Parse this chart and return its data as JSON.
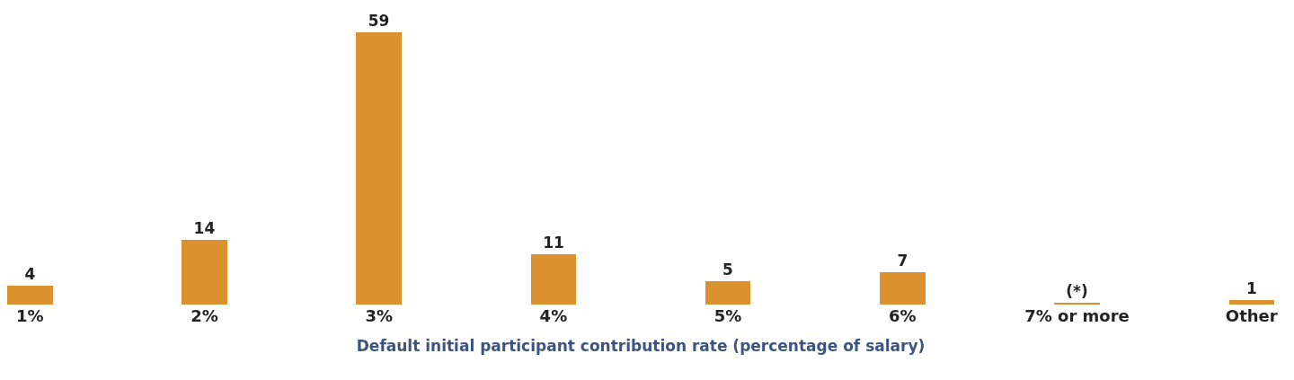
{
  "chart_data": {
    "type": "bar",
    "xlabel": "Default initial participant contribution rate (percentage of salary)",
    "categories": [
      "1%",
      "2%",
      "3%",
      "4%",
      "5%",
      "6%",
      "7% or more",
      "Other"
    ],
    "values": [
      4,
      14,
      59,
      11,
      5,
      7,
      0.2,
      1
    ],
    "value_labels": [
      "4",
      "14",
      "59",
      "11",
      "5",
      "7",
      "(*)",
      "1"
    ],
    "color": "#dc912f"
  }
}
